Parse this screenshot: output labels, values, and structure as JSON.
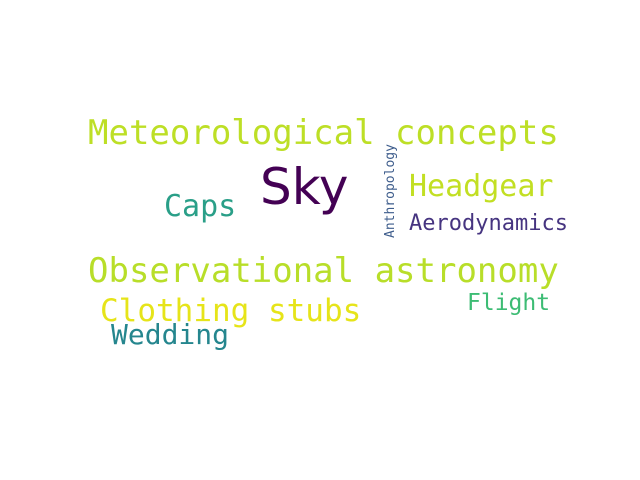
{
  "word_cloud": {
    "words": [
      {
        "text": "Meteorological concepts",
        "color": "#bddf26"
      },
      {
        "text": "Sky",
        "color": "#440154"
      },
      {
        "text": "Caps",
        "color": "#2a9f88"
      },
      {
        "text": "Headgear",
        "color": "#c2df23"
      },
      {
        "text": "Anthropology",
        "color": "#3e5d8c"
      },
      {
        "text": "Aerodynamics",
        "color": "#463480"
      },
      {
        "text": "Observational astronomy",
        "color": "#b8de29"
      },
      {
        "text": "Clothing stubs",
        "color": "#e6e419"
      },
      {
        "text": "Wedding",
        "color": "#25868e"
      },
      {
        "text": "Flight",
        "color": "#3dbc74"
      }
    ]
  }
}
